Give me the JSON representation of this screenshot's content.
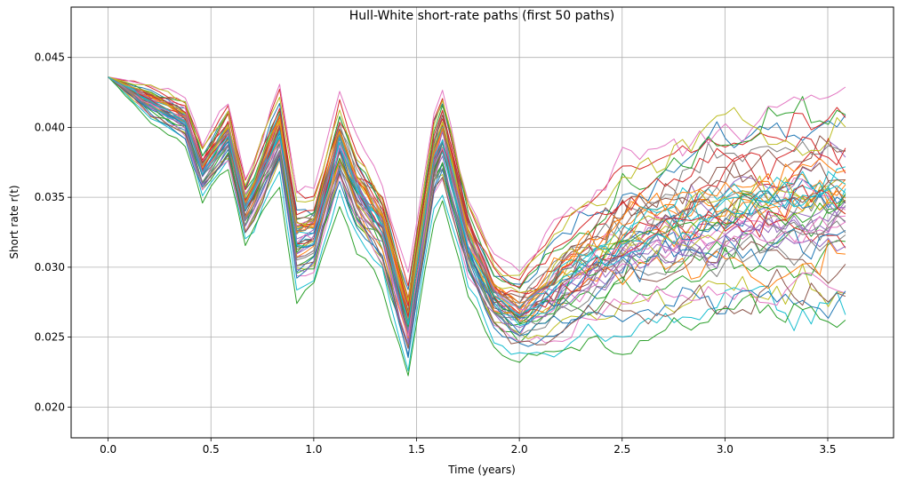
{
  "chart_data": {
    "type": "line",
    "title": "Hull-White short-rate paths (first 50 paths)",
    "xlabel": "Time (years)",
    "ylabel": "Short rate r(t)",
    "xlim": [
      -0.18,
      3.82
    ],
    "ylim": [
      0.0178,
      0.0486
    ],
    "xticks": [
      0.0,
      0.5,
      1.0,
      1.5,
      2.0,
      2.5,
      3.0,
      3.5
    ],
    "xtick_labels": [
      "0.0",
      "0.5",
      "1.0",
      "1.5",
      "2.0",
      "2.5",
      "3.0",
      "3.5"
    ],
    "yticks": [
      0.02,
      0.025,
      0.03,
      0.035,
      0.04,
      0.045
    ],
    "ytick_labels": [
      "0.020",
      "0.025",
      "0.030",
      "0.035",
      "0.040",
      "0.045"
    ],
    "grid": true,
    "legend": "none",
    "line_width": 1,
    "palette": [
      "#1f77b4",
      "#ff7f0e",
      "#2ca02c",
      "#d62728",
      "#9467bd",
      "#8c564b",
      "#e377c2",
      "#7f7f7f",
      "#bcbd22",
      "#17becf"
    ],
    "num_paths": 50,
    "x_step": 0.0417,
    "x_end": 3.625,
    "r0": 0.0436,
    "anchors": {
      "x": [
        0.0,
        0.208,
        0.375,
        0.458,
        0.583,
        0.667,
        0.708,
        0.833,
        0.917,
        1.0,
        1.125,
        1.208,
        1.333,
        1.458,
        1.583,
        1.625,
        1.75,
        1.875,
        2.0,
        2.125,
        2.25,
        2.5,
        3.0,
        3.625
      ],
      "mean": [
        0.0436,
        0.0418,
        0.0405,
        0.0368,
        0.0395,
        0.0342,
        0.0352,
        0.0398,
        0.0318,
        0.0322,
        0.0388,
        0.0355,
        0.0328,
        0.0258,
        0.0375,
        0.0392,
        0.0318,
        0.0278,
        0.0265,
        0.0278,
        0.0292,
        0.0315,
        0.0336,
        0.0345
      ],
      "spread": [
        0.0,
        0.0009,
        0.0012,
        0.0014,
        0.0016,
        0.0017,
        0.0018,
        0.0022,
        0.0025,
        0.0022,
        0.0024,
        0.0024,
        0.0024,
        0.0023,
        0.0025,
        0.0027,
        0.0022,
        0.002,
        0.0022,
        0.003,
        0.0036,
        0.0046,
        0.0052,
        0.0055
      ]
    }
  }
}
